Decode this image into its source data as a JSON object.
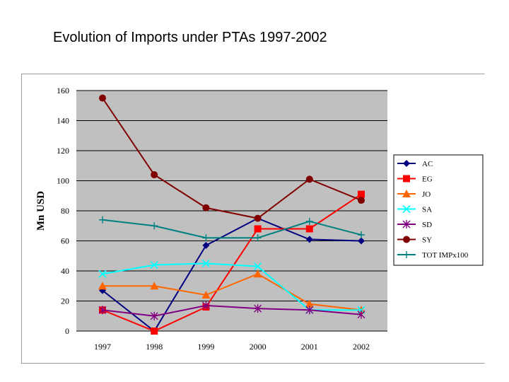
{
  "slide": {
    "title": "Evolution of Imports under PTAs 1997-2002"
  },
  "chart_data": {
    "type": "line",
    "title": "",
    "xlabel": "",
    "ylabel": "Mn USD",
    "categories": [
      "1997",
      "1998",
      "1999",
      "2000",
      "2001",
      "2002"
    ],
    "ylim": [
      0,
      160
    ],
    "yticks": [
      0,
      20,
      40,
      60,
      80,
      100,
      120,
      140,
      160
    ],
    "grid": true,
    "legend_position": "right",
    "plot_background": "#c0c0c0",
    "series": [
      {
        "name": "AC",
        "color": "#000080",
        "marker": "diamond",
        "values": [
          27,
          0,
          57,
          75,
          61,
          60
        ]
      },
      {
        "name": "EG",
        "color": "#ff0000",
        "marker": "square",
        "values": [
          14,
          0,
          16,
          68,
          68,
          91
        ]
      },
      {
        "name": "JO",
        "color": "#ff6600",
        "marker": "triangle",
        "values": [
          30,
          30,
          24,
          38,
          18,
          14
        ]
      },
      {
        "name": "SA",
        "color": "#00ffff",
        "marker": "x",
        "values": [
          38,
          44,
          45,
          43,
          14,
          14
        ]
      },
      {
        "name": "SD",
        "color": "#800080",
        "marker": "star",
        "values": [
          14,
          10,
          17,
          15,
          14,
          11
        ]
      },
      {
        "name": "SY",
        "color": "#800000",
        "marker": "circle",
        "values": [
          155,
          104,
          82,
          75,
          101,
          87
        ]
      },
      {
        "name": "TOT IMPx100",
        "color": "#008080",
        "marker": "plus",
        "values": [
          74,
          70,
          62,
          62,
          73,
          64
        ]
      }
    ]
  }
}
